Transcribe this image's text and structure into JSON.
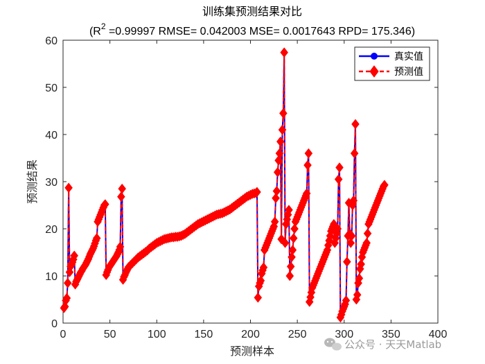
{
  "chart_data": {
    "type": "line",
    "title": "训练集预测结果对比",
    "subtitle_prefix": "(R",
    "subtitle_sup": "2",
    "subtitle_rest": " =0.99997 RMSE= 0.042003 MSE= 0.0017643 RPD= 175.346)",
    "xlabel": "预测样本",
    "ylabel": "预测结果",
    "xlim": [
      0,
      400
    ],
    "ylim": [
      0,
      60
    ],
    "xticks": [
      0,
      50,
      100,
      150,
      200,
      250,
      300,
      350,
      400
    ],
    "yticks": [
      0,
      10,
      20,
      30,
      40,
      50,
      60
    ],
    "grid": false,
    "legend_position": "top-right",
    "series": [
      {
        "name": "真实值",
        "color": "#0000ff",
        "style": "solid",
        "marker": "circle"
      },
      {
        "name": "预测值",
        "color": "#ff0000",
        "style": "dashed",
        "marker": "diamond"
      }
    ],
    "points": [
      [
        1,
        3.2
      ],
      [
        2,
        3.5
      ],
      [
        3,
        4.8
      ],
      [
        4,
        5.3
      ],
      [
        5,
        8.5
      ],
      [
        6,
        28.7
      ],
      [
        7,
        10.8
      ],
      [
        8,
        12.0
      ],
      [
        9,
        12.4
      ],
      [
        10,
        12.9
      ],
      [
        11,
        13.5
      ],
      [
        12,
        14.3
      ],
      [
        13,
        8.2
      ],
      [
        14,
        8.8
      ],
      [
        15,
        9.2
      ],
      [
        16,
        9.6
      ],
      [
        17,
        10.0
      ],
      [
        18,
        10.4
      ],
      [
        19,
        10.8
      ],
      [
        20,
        11.1
      ],
      [
        21,
        11.5
      ],
      [
        22,
        11.8
      ],
      [
        23,
        12.1
      ],
      [
        24,
        12.4
      ],
      [
        25,
        12.8
      ],
      [
        26,
        13.2
      ],
      [
        27,
        13.6
      ],
      [
        28,
        14.1
      ],
      [
        29,
        14.6
      ],
      [
        30,
        15.0
      ],
      [
        31,
        15.4
      ],
      [
        32,
        15.8
      ],
      [
        33,
        16.3
      ],
      [
        34,
        16.9
      ],
      [
        35,
        17.5
      ],
      [
        36,
        18.0
      ],
      [
        37,
        21.5
      ],
      [
        38,
        22.0
      ],
      [
        39,
        22.5
      ],
      [
        40,
        23.0
      ],
      [
        41,
        23.5
      ],
      [
        42,
        24.0
      ],
      [
        43,
        24.5
      ],
      [
        44,
        25.0
      ],
      [
        45,
        25.2
      ],
      [
        46,
        10.2
      ],
      [
        47,
        10.8
      ],
      [
        48,
        11.3
      ],
      [
        49,
        11.8
      ],
      [
        50,
        12.1
      ],
      [
        51,
        12.4
      ],
      [
        52,
        12.7
      ],
      [
        53,
        13.0
      ],
      [
        54,
        13.3
      ],
      [
        55,
        13.6
      ],
      [
        56,
        13.9
      ],
      [
        57,
        14.2
      ],
      [
        58,
        14.6
      ],
      [
        59,
        15.0
      ],
      [
        60,
        15.5
      ],
      [
        61,
        16.2
      ],
      [
        62,
        26.8
      ],
      [
        63,
        28.5
      ],
      [
        64,
        9.2
      ],
      [
        65,
        9.8
      ],
      [
        66,
        10.2
      ],
      [
        67,
        10.7
      ],
      [
        68,
        11.1
      ],
      [
        69,
        11.5
      ],
      [
        70,
        11.9
      ],
      [
        72,
        12.3
      ],
      [
        74,
        12.7
      ],
      [
        76,
        13.1
      ],
      [
        78,
        13.5
      ],
      [
        80,
        13.9
      ],
      [
        82,
        14.2
      ],
      [
        84,
        14.5
      ],
      [
        86,
        14.8
      ],
      [
        88,
        15.1
      ],
      [
        90,
        15.4
      ],
      [
        92,
        15.8
      ],
      [
        94,
        16.1
      ],
      [
        96,
        16.4
      ],
      [
        98,
        16.7
      ],
      [
        100,
        17.0
      ],
      [
        102,
        17.2
      ],
      [
        104,
        17.4
      ],
      [
        106,
        17.6
      ],
      [
        108,
        17.8
      ],
      [
        110,
        17.9
      ],
      [
        112,
        18.0
      ],
      [
        114,
        18.1
      ],
      [
        116,
        18.2
      ],
      [
        118,
        18.2
      ],
      [
        120,
        18.3
      ],
      [
        122,
        18.3
      ],
      [
        124,
        18.4
      ],
      [
        126,
        18.5
      ],
      [
        128,
        18.7
      ],
      [
        130,
        18.9
      ],
      [
        132,
        19.2
      ],
      [
        134,
        19.5
      ],
      [
        136,
        19.8
      ],
      [
        138,
        20.1
      ],
      [
        140,
        20.4
      ],
      [
        142,
        20.7
      ],
      [
        144,
        21.0
      ],
      [
        146,
        21.2
      ],
      [
        148,
        21.4
      ],
      [
        150,
        21.6
      ],
      [
        152,
        21.8
      ],
      [
        154,
        22.0
      ],
      [
        156,
        22.2
      ],
      [
        158,
        22.4
      ],
      [
        160,
        22.6
      ],
      [
        162,
        22.8
      ],
      [
        164,
        23.0
      ],
      [
        166,
        23.1
      ],
      [
        168,
        23.2
      ],
      [
        170,
        23.3
      ],
      [
        172,
        23.5
      ],
      [
        174,
        23.7
      ],
      [
        176,
        23.9
      ],
      [
        178,
        24.1
      ],
      [
        180,
        24.4
      ],
      [
        182,
        24.7
      ],
      [
        184,
        25.0
      ],
      [
        186,
        25.3
      ],
      [
        188,
        25.6
      ],
      [
        190,
        25.9
      ],
      [
        192,
        26.2
      ],
      [
        194,
        26.5
      ],
      [
        196,
        26.8
      ],
      [
        198,
        27.0
      ],
      [
        200,
        27.2
      ],
      [
        202,
        27.4
      ],
      [
        204,
        27.5
      ],
      [
        206,
        27.6
      ],
      [
        207,
        27.8
      ],
      [
        208,
        5.4
      ],
      [
        209,
        7.8
      ],
      [
        210,
        8.5
      ],
      [
        211,
        9.0
      ],
      [
        212,
        10.5
      ],
      [
        213,
        11.2
      ],
      [
        214,
        11.8
      ],
      [
        215,
        15.5
      ],
      [
        216,
        16.0
      ],
      [
        217,
        16.5
      ],
      [
        218,
        17.0
      ],
      [
        219,
        17.5
      ],
      [
        220,
        18.0
      ],
      [
        221,
        18.5
      ],
      [
        222,
        19.0
      ],
      [
        223,
        19.5
      ],
      [
        224,
        20.0
      ],
      [
        225,
        20.5
      ],
      [
        226,
        21.5
      ],
      [
        227,
        26.5
      ],
      [
        228,
        28.0
      ],
      [
        229,
        32.0
      ],
      [
        230,
        34.5
      ],
      [
        231,
        36.0
      ],
      [
        232,
        38.5
      ],
      [
        233,
        17.8
      ],
      [
        234,
        41.0
      ],
      [
        235,
        44.5
      ],
      [
        236,
        57.4
      ],
      [
        237,
        17.0
      ],
      [
        238,
        21.0
      ],
      [
        239,
        22.0
      ],
      [
        240,
        23.0
      ],
      [
        241,
        24.0
      ],
      [
        242,
        10.0
      ],
      [
        243,
        12.0
      ],
      [
        244,
        14.0
      ],
      [
        245,
        15.5
      ],
      [
        246,
        18.0
      ],
      [
        247,
        20.0
      ],
      [
        248,
        21.5
      ],
      [
        249,
        22.0
      ],
      [
        250,
        22.5
      ],
      [
        251,
        23.0
      ],
      [
        252,
        23.5
      ],
      [
        253,
        24.0
      ],
      [
        254,
        24.5
      ],
      [
        255,
        25.0
      ],
      [
        256,
        25.5
      ],
      [
        257,
        26.0
      ],
      [
        258,
        26.5
      ],
      [
        259,
        27.0
      ],
      [
        260,
        27.5
      ],
      [
        261,
        33.5
      ],
      [
        262,
        36.0
      ],
      [
        263,
        4.5
      ],
      [
        264,
        5.5
      ],
      [
        265,
        6.5
      ],
      [
        266,
        7.5
      ],
      [
        267,
        8.0
      ],
      [
        268,
        8.5
      ],
      [
        269,
        9.0
      ],
      [
        270,
        9.5
      ],
      [
        271,
        10.0
      ],
      [
        272,
        10.5
      ],
      [
        273,
        11.0
      ],
      [
        274,
        11.5
      ],
      [
        275,
        12.0
      ],
      [
        276,
        12.5
      ],
      [
        277,
        13.0
      ],
      [
        278,
        13.5
      ],
      [
        279,
        14.0
      ],
      [
        280,
        14.5
      ],
      [
        281,
        15.0
      ],
      [
        282,
        15.5
      ],
      [
        283,
        16.5
      ],
      [
        284,
        17.5
      ],
      [
        285,
        18.5
      ],
      [
        286,
        19.5
      ],
      [
        287,
        20.0
      ],
      [
        288,
        20.5
      ],
      [
        289,
        21.0
      ],
      [
        290,
        17.0
      ],
      [
        291,
        18.0
      ],
      [
        292,
        19.0
      ],
      [
        293,
        20.0
      ],
      [
        294,
        30.5
      ],
      [
        295,
        33.0
      ],
      [
        296,
        1.2
      ],
      [
        297,
        1.8
      ],
      [
        298,
        2.5
      ],
      [
        299,
        3.0
      ],
      [
        300,
        3.5
      ],
      [
        301,
        4.0
      ],
      [
        302,
        4.8
      ],
      [
        303,
        13.0
      ],
      [
        304,
        18.5
      ],
      [
        305,
        25.5
      ],
      [
        306,
        19.0
      ],
      [
        307,
        17.0
      ],
      [
        308,
        18.5
      ],
      [
        309,
        25.0
      ],
      [
        310,
        26.0
      ],
      [
        311,
        36.0
      ],
      [
        312,
        42.2
      ],
      [
        313,
        5.0
      ],
      [
        314,
        6.0
      ],
      [
        315,
        8.5
      ],
      [
        316,
        9.5
      ],
      [
        317,
        11.5
      ],
      [
        318,
        12.5
      ],
      [
        319,
        14.0
      ],
      [
        320,
        15.0
      ],
      [
        321,
        15.5
      ],
      [
        322,
        16.0
      ],
      [
        323,
        16.5
      ],
      [
        324,
        17.0
      ],
      [
        325,
        19.0
      ],
      [
        326,
        21.0
      ],
      [
        327,
        21.5
      ],
      [
        328,
        22.0
      ],
      [
        329,
        22.5
      ],
      [
        330,
        23.0
      ],
      [
        331,
        23.5
      ],
      [
        332,
        24.0
      ],
      [
        333,
        24.5
      ],
      [
        334,
        25.0
      ],
      [
        335,
        25.5
      ],
      [
        336,
        26.0
      ],
      [
        337,
        26.5
      ],
      [
        338,
        27.0
      ],
      [
        339,
        27.5
      ],
      [
        340,
        28.0
      ],
      [
        341,
        28.5
      ],
      [
        342,
        29.0
      ],
      [
        343,
        29.3
      ]
    ]
  },
  "watermark": {
    "text": "公众号 · 天天Matlab",
    "icon": "wechat-icon"
  }
}
